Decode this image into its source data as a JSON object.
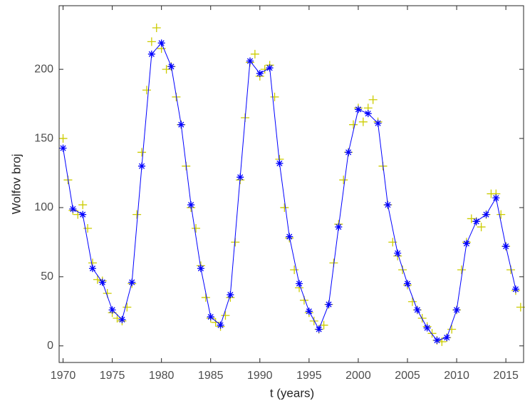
{
  "chart_data": {
    "type": "line",
    "ylabel": "Wolfov broj",
    "xlabel": "t (years)",
    "xlim": [
      1969.6,
      2016.8
    ],
    "ylim": [
      -12,
      246
    ],
    "xticks": [
      1970,
      1975,
      1980,
      1985,
      1990,
      1995,
      2000,
      2005,
      2010,
      2015
    ],
    "yticks": [
      0,
      50,
      100,
      150,
      200
    ],
    "grid": false,
    "series": [
      {
        "marker": "+",
        "line": false,
        "color": "#cccc00",
        "x": [
          1970,
          1970.5,
          1971,
          1971.5,
          1972,
          1972.5,
          1973,
          1973.5,
          1974,
          1974.5,
          1975,
          1975.5,
          1976,
          1976.5,
          1977,
          1977.5,
          1978,
          1978.5,
          1979,
          1979.5,
          1980,
          1980.5,
          1981,
          1981.5,
          1982,
          1982.5,
          1983,
          1983.5,
          1984,
          1984.5,
          1985,
          1985.5,
          1986,
          1986.5,
          1987,
          1987.5,
          1988,
          1988.5,
          1989,
          1989.5,
          1990,
          1990.5,
          1991,
          1991.5,
          1992,
          1992.5,
          1993,
          1993.5,
          1994,
          1994.5,
          1995,
          1995.5,
          1996,
          1996.5,
          1997,
          1997.5,
          1998,
          1998.5,
          1999,
          1999.5,
          2000,
          2000.5,
          2001,
          2001.5,
          2002,
          2002.5,
          2003,
          2003.5,
          2004,
          2004.5,
          2005,
          2005.5,
          2006,
          2006.5,
          2007,
          2007.5,
          2008,
          2008.5,
          2009,
          2009.5,
          2010,
          2010.5,
          2011,
          2011.5,
          2012,
          2012.5,
          2013,
          2013.5,
          2014,
          2014.5,
          2015,
          2015.5,
          2016,
          2016.5
        ],
        "values": [
          150,
          120,
          98,
          95,
          102,
          85,
          60,
          48,
          47,
          38,
          24,
          20,
          18,
          28,
          45,
          95,
          140,
          185,
          220,
          230,
          215,
          200,
          202,
          180,
          160,
          130,
          100,
          85,
          58,
          35,
          20,
          17,
          14,
          22,
          35,
          75,
          120,
          165,
          205,
          211,
          195,
          200,
          203,
          180,
          135,
          100,
          78,
          55,
          42,
          33,
          24,
          18,
          12,
          15,
          30,
          60,
          88,
          120,
          140,
          160,
          172,
          162,
          172,
          178,
          162,
          130,
          102,
          75,
          65,
          55,
          44,
          32,
          26,
          20,
          14,
          9,
          4,
          3,
          6,
          12,
          26,
          55,
          75,
          92,
          90,
          86,
          95,
          110,
          110,
          95,
          72,
          55,
          40,
          28
        ]
      },
      {
        "marker": "*",
        "line": true,
        "color": "#0000ff",
        "x": [
          1970,
          1971,
          1972,
          1973,
          1974,
          1975,
          1976,
          1977,
          1978,
          1979,
          1980,
          1981,
          1982,
          1983,
          1984,
          1985,
          1986,
          1987,
          1988,
          1989,
          1990,
          1991,
          1992,
          1993,
          1994,
          1995,
          1996,
          1997,
          1998,
          1999,
          2000,
          2001,
          2002,
          2003,
          2004,
          2005,
          2006,
          2007,
          2008,
          2009,
          2010,
          2011,
          2012,
          2013,
          2014,
          2015,
          2016
        ],
        "values": [
          143,
          99,
          95,
          56,
          46,
          26,
          19,
          46,
          130,
          211,
          219,
          202,
          160,
          102,
          56,
          21,
          15,
          37,
          122,
          206,
          197,
          201,
          132,
          79,
          45,
          25,
          12,
          30,
          86,
          140,
          171,
          168,
          161,
          102,
          67,
          45,
          26,
          13,
          4,
          6,
          26,
          74,
          90,
          95,
          107,
          72,
          41
        ]
      }
    ]
  }
}
